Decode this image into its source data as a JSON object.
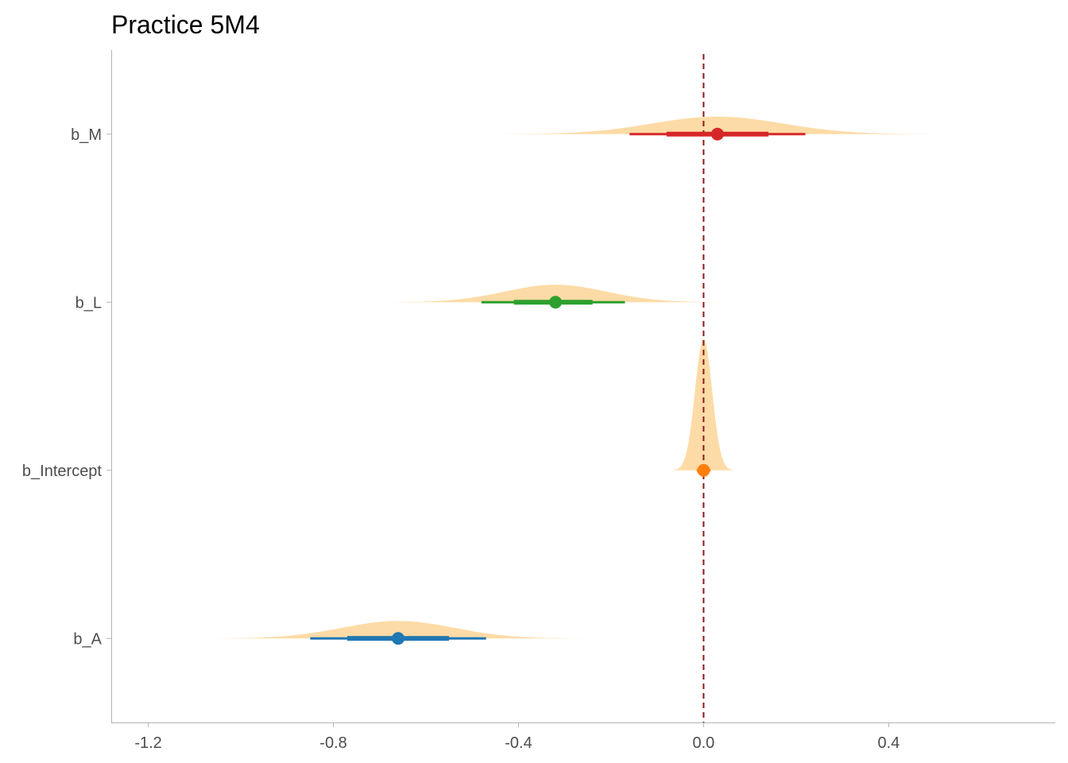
{
  "chart_data": {
    "type": "halfeye",
    "title": "Practice 5M4",
    "xlabel": "",
    "ylabel": "",
    "xlim": [
      -1.28,
      0.76
    ],
    "x_ticks": [
      -1.2,
      -0.8,
      -0.4,
      0.0,
      0.4
    ],
    "x_tick_labels": [
      "-1.2",
      "-0.8",
      "-0.4",
      "0.0",
      "0.4"
    ],
    "reference_line": {
      "x": 0.0,
      "style": "dashed",
      "color": "#8B1A1A"
    },
    "density_fill": "#FDDBA6",
    "grid": false,
    "legend": "none",
    "parameters": [
      {
        "name": "b_M",
        "color": "#D62728",
        "density": {
          "min": -0.46,
          "max": 0.53
        },
        "point": 0.03,
        "interval_66": [
          -0.08,
          0.14
        ],
        "interval_95": [
          -0.16,
          0.22
        ]
      },
      {
        "name": "b_L",
        "color": "#2CA02C",
        "density": {
          "min": -0.7,
          "max": 0.07
        },
        "point": -0.32,
        "interval_66": [
          -0.41,
          -0.24
        ],
        "interval_95": [
          -0.48,
          -0.17
        ]
      },
      {
        "name": "b_Intercept",
        "color": "#FF7F0E",
        "density": {
          "min": -0.065,
          "max": 0.065
        },
        "point": 0.0,
        "interval_66": [
          -0.007,
          0.007
        ],
        "interval_95": [
          -0.015,
          0.015
        ]
      },
      {
        "name": "b_A",
        "color": "#1F77B4",
        "density": {
          "min": -1.07,
          "max": -0.22
        },
        "point": -0.66,
        "interval_66": [
          -0.77,
          -0.55
        ],
        "interval_95": [
          -0.85,
          -0.47
        ]
      }
    ]
  }
}
